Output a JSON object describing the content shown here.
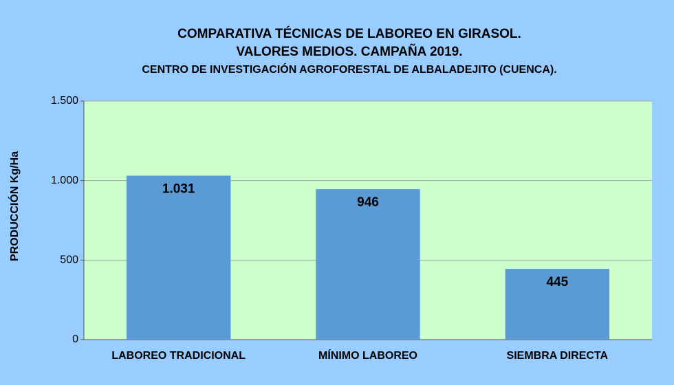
{
  "chart_data": {
    "type": "bar",
    "title": [
      "COMPARATIVA  TÉCNICAS DE LABOREO  EN GIRASOL.",
      "VALORES  MEDIOS. CAMPAÑA  2019."
    ],
    "subtitle": "CENTRO DE INVESTIGACIÓN AGROFORESTAL  DE ALBALADEJITO  (CUENCA).",
    "ylabel": "PRODUCCIÓN Kg/Ha",
    "categories": [
      "LABOREO TRADICIONAL",
      "MÍNIMO LABOREO",
      "SIEMBRA DIRECTA"
    ],
    "values": [
      1031,
      946,
      445
    ],
    "value_labels": [
      "1.031",
      "946",
      "445"
    ],
    "color": "#5b9bd5",
    "plot_background": "#ccffcc",
    "ylim": [
      0,
      1500
    ],
    "yticks": [
      0,
      500,
      {
        "value": 1000,
        "label": "1.000"
      },
      {
        "value": 1500,
        "label": "1.500"
      }
    ],
    "grid": true
  }
}
